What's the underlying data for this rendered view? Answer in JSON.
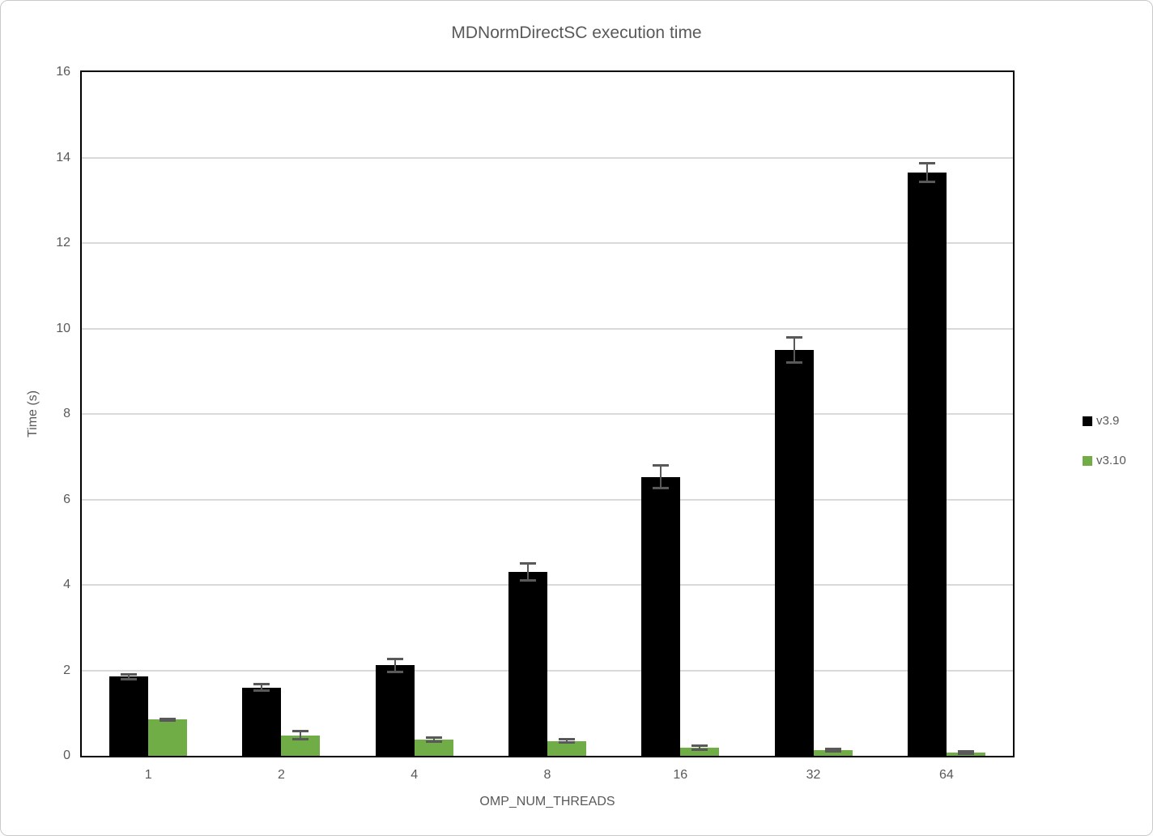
{
  "chart_data": {
    "type": "bar",
    "title": "MDNormDirectSC execution time",
    "xlabel": "OMP_NUM_THREADS",
    "ylabel": "Time (s)",
    "categories": [
      "1",
      "2",
      "4",
      "8",
      "16",
      "32",
      "64"
    ],
    "series": [
      {
        "name": "v3.9",
        "color": "#000000",
        "values": [
          1.85,
          1.6,
          2.12,
          4.3,
          6.53,
          9.5,
          13.65
        ],
        "errors": [
          0.05,
          0.07,
          0.15,
          0.2,
          0.27,
          0.3,
          0.22
        ]
      },
      {
        "name": "v3.10",
        "color": "#70AD47",
        "values": [
          0.85,
          0.48,
          0.38,
          0.35,
          0.19,
          0.13,
          0.07
        ],
        "errors": [
          0.02,
          0.09,
          0.04,
          0.03,
          0.04,
          0.03,
          0.03
        ]
      }
    ],
    "ylim": [
      0,
      16
    ],
    "yticks": [
      0,
      2,
      4,
      6,
      8,
      10,
      12,
      14,
      16
    ],
    "grid": true,
    "legend_position": "right",
    "gridline_color": "#D9D9D9",
    "error_bar_color": "#595959",
    "text_color": "#595959"
  }
}
